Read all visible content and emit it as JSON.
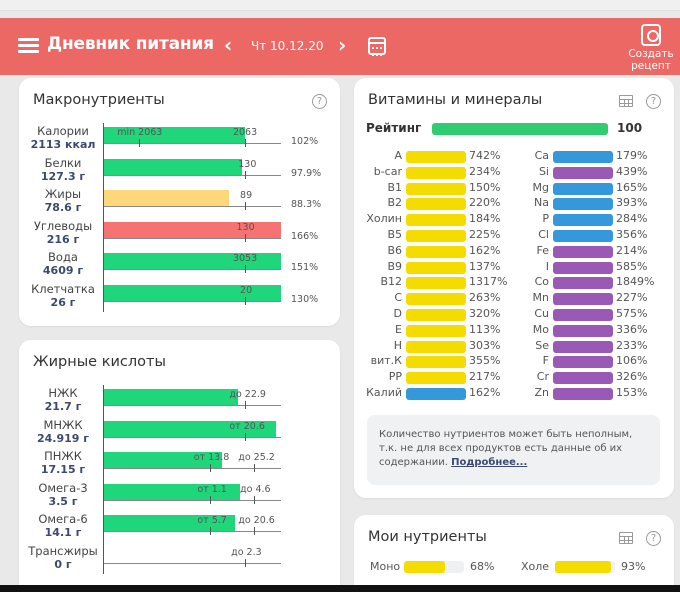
{
  "header": {
    "title": "Дневник питания",
    "date": "Чт 10.12.20",
    "prev_icon": "chevron-left-icon",
    "next_icon": "chevron-right-icon",
    "calendar_icon": "calendar-icon",
    "create_recipe_line1": "Создать",
    "create_recipe_line2": "рецепт",
    "bg_color": "#ec6864"
  },
  "macros": {
    "title": "Макронутриенты",
    "help": "?",
    "rows": [
      {
        "name": "Калории",
        "value": "2113 ккал",
        "fill": 0.8,
        "color": "#1fd67a",
        "labels": [
          {
            "text": "min 2063",
            "pos": 0.08
          },
          {
            "text": "2063",
            "pos": 0.73
          }
        ],
        "ticks": [
          0.2,
          0.8
        ],
        "pct": "102%"
      },
      {
        "name": "Белки",
        "value": "127.3 г",
        "fill": 0.78,
        "color": "#1fd67a",
        "labels": [
          {
            "text": "130",
            "pos": 0.76
          }
        ],
        "ticks": [
          0.8
        ],
        "pct": "97.9%"
      },
      {
        "name": "Жиры",
        "value": "78.6 г",
        "fill": 0.71,
        "color": "#fdd77a",
        "labels": [
          {
            "text": "89",
            "pos": 0.77
          }
        ],
        "ticks": [
          0.8
        ],
        "pct": "88.3%"
      },
      {
        "name": "Углеводы",
        "value": "216 г",
        "fill": 1.0,
        "color": "#f67373",
        "labels": [
          {
            "text": "130",
            "pos": 0.75
          }
        ],
        "ticks": [
          0.8
        ],
        "pct": "166%"
      },
      {
        "name": "Вода",
        "value": "4609 г",
        "fill": 1.0,
        "color": "#1fd67a",
        "labels": [
          {
            "text": "3053",
            "pos": 0.73
          }
        ],
        "ticks": [
          0.8
        ],
        "pct": "151%"
      },
      {
        "name": "Клетчатка",
        "value": "26 г",
        "fill": 1.0,
        "color": "#1fd67a",
        "labels": [
          {
            "text": "20",
            "pos": 0.77
          }
        ],
        "ticks": [
          0.8
        ],
        "pct": "130%"
      }
    ]
  },
  "fatty": {
    "title": "Жирные кислоты",
    "rows": [
      {
        "name": "НЖК",
        "value": "21.7 г",
        "fill": 0.76,
        "labels": [
          {
            "text": "до 22.9",
            "pos": 0.71
          }
        ],
        "ticks": [
          0.8
        ]
      },
      {
        "name": "МНЖК",
        "value": "24.919 г",
        "fill": 0.97,
        "labels": [
          {
            "text": "от 20.6",
            "pos": 0.71
          }
        ],
        "ticks": [
          0.8
        ]
      },
      {
        "name": "ПНЖК",
        "value": "17.15 г",
        "fill": 0.67,
        "labels": [
          {
            "text": "от 13.8",
            "pos": 0.51
          },
          {
            "text": "до 25.2",
            "pos": 0.76
          }
        ],
        "ticks": [
          0.6,
          0.85
        ]
      },
      {
        "name": "Омега-3",
        "value": "3.5 г",
        "fill": 0.77,
        "labels": [
          {
            "text": "от 1.1",
            "pos": 0.53
          },
          {
            "text": "до 4.6",
            "pos": 0.77
          }
        ],
        "ticks": [
          0.6,
          0.85
        ]
      },
      {
        "name": "Омега-6",
        "value": "14.1 г",
        "fill": 0.74,
        "labels": [
          {
            "text": "от 5.7",
            "pos": 0.53
          },
          {
            "text": "до 20.6",
            "pos": 0.76
          }
        ],
        "ticks": [
          0.6,
          0.85
        ]
      },
      {
        "name": "Трансжиры",
        "value": "0 г",
        "fill": 0,
        "labels": [
          {
            "text": "до 2.3",
            "pos": 0.72
          }
        ],
        "ticks": [
          0.8
        ]
      }
    ]
  },
  "vitamins": {
    "title": "Витамины и минералы",
    "rating_label": "Рейтинг",
    "rating_value": "100",
    "colors": {
      "yellow": "#f5dc00",
      "blue": "#3598db",
      "purple": "#9b59b6"
    },
    "left": [
      {
        "name": "A",
        "pct": "742%",
        "color": "yellow"
      },
      {
        "name": "b-car",
        "pct": "234%",
        "color": "yellow"
      },
      {
        "name": "B1",
        "pct": "150%",
        "color": "yellow"
      },
      {
        "name": "B2",
        "pct": "220%",
        "color": "yellow"
      },
      {
        "name": "Холин",
        "pct": "184%",
        "color": "yellow"
      },
      {
        "name": "B5",
        "pct": "225%",
        "color": "yellow"
      },
      {
        "name": "B6",
        "pct": "162%",
        "color": "yellow"
      },
      {
        "name": "B9",
        "pct": "137%",
        "color": "yellow"
      },
      {
        "name": "B12",
        "pct": "1317%",
        "color": "yellow"
      },
      {
        "name": "C",
        "pct": "263%",
        "color": "yellow"
      },
      {
        "name": "D",
        "pct": "320%",
        "color": "yellow"
      },
      {
        "name": "E",
        "pct": "113%",
        "color": "yellow"
      },
      {
        "name": "H",
        "pct": "303%",
        "color": "yellow"
      },
      {
        "name": "вит.К",
        "pct": "355%",
        "color": "yellow"
      },
      {
        "name": "PP",
        "pct": "217%",
        "color": "yellow"
      },
      {
        "name": "Калий",
        "pct": "162%",
        "color": "blue"
      }
    ],
    "right": [
      {
        "name": "Ca",
        "pct": "179%",
        "color": "blue"
      },
      {
        "name": "Si",
        "pct": "439%",
        "color": "purple"
      },
      {
        "name": "Mg",
        "pct": "165%",
        "color": "blue"
      },
      {
        "name": "Na",
        "pct": "393%",
        "color": "blue"
      },
      {
        "name": "P",
        "pct": "284%",
        "color": "blue"
      },
      {
        "name": "Cl",
        "pct": "356%",
        "color": "blue"
      },
      {
        "name": "Fe",
        "pct": "214%",
        "color": "purple"
      },
      {
        "name": "I",
        "pct": "585%",
        "color": "purple"
      },
      {
        "name": "Co",
        "pct": "1849%",
        "color": "purple"
      },
      {
        "name": "Mn",
        "pct": "227%",
        "color": "purple"
      },
      {
        "name": "Cu",
        "pct": "575%",
        "color": "purple"
      },
      {
        "name": "Mo",
        "pct": "336%",
        "color": "purple"
      },
      {
        "name": "Se",
        "pct": "233%",
        "color": "purple"
      },
      {
        "name": "F",
        "pct": "106%",
        "color": "purple"
      },
      {
        "name": "Cr",
        "pct": "326%",
        "color": "purple"
      },
      {
        "name": "Zn",
        "pct": "153%",
        "color": "purple"
      }
    ],
    "note_text": "Количество нутриентов может быть неполным, т.к. не для всех продуктов есть данные об их содержании.",
    "note_link": "Подробнее..."
  },
  "my_nutrients": {
    "title": "Мои нутриенты",
    "items": [
      {
        "name": "Моно",
        "pct": "68%",
        "fill": 0.68
      },
      {
        "name": "Холе",
        "pct": "93%",
        "fill": 0.93
      }
    ]
  }
}
